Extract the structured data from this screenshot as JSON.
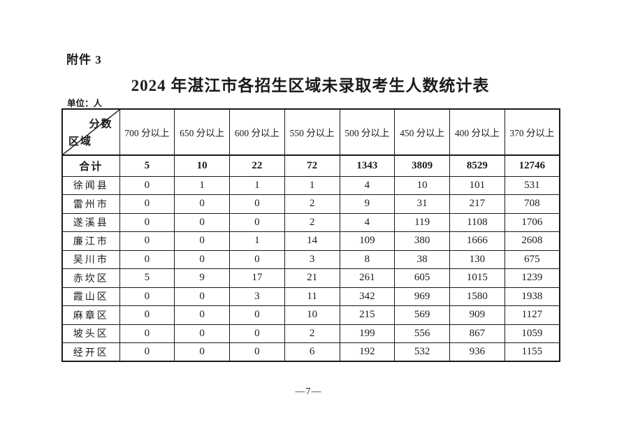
{
  "page": {
    "attachment_label": "附件 3",
    "title": "2024 年湛江市各招生区域未录取考生人数统计表",
    "unit_label": "单位：人",
    "page_number": "—7—"
  },
  "table": {
    "corner": {
      "score_label": "分数",
      "region_label": "区域"
    },
    "columns": [
      "700 分以上",
      "650 分以上",
      "600 分以上",
      "550 分以上",
      "500 分以上",
      "450 分以上",
      "400 分以上",
      "370 分以上"
    ],
    "total_row": {
      "label": "合计",
      "values": [
        "5",
        "10",
        "22",
        "72",
        "1343",
        "3809",
        "8529",
        "12746"
      ]
    },
    "rows": [
      {
        "label": "徐闻县",
        "values": [
          "0",
          "1",
          "1",
          "1",
          "4",
          "10",
          "101",
          "531"
        ]
      },
      {
        "label": "雷州市",
        "values": [
          "0",
          "0",
          "0",
          "2",
          "9",
          "31",
          "217",
          "708"
        ]
      },
      {
        "label": "遂溪县",
        "values": [
          "0",
          "0",
          "0",
          "2",
          "4",
          "119",
          "1108",
          "1706"
        ]
      },
      {
        "label": "廉江市",
        "values": [
          "0",
          "0",
          "1",
          "14",
          "109",
          "380",
          "1666",
          "2608"
        ]
      },
      {
        "label": "吴川市",
        "values": [
          "0",
          "0",
          "0",
          "3",
          "8",
          "38",
          "130",
          "675"
        ]
      },
      {
        "label": "赤坎区",
        "values": [
          "5",
          "9",
          "17",
          "21",
          "261",
          "605",
          "1015",
          "1239"
        ]
      },
      {
        "label": "霞山区",
        "values": [
          "0",
          "0",
          "3",
          "11",
          "342",
          "969",
          "1580",
          "1938"
        ]
      },
      {
        "label": "麻章区",
        "values": [
          "0",
          "0",
          "0",
          "10",
          "215",
          "569",
          "909",
          "1127"
        ]
      },
      {
        "label": "坡头区",
        "values": [
          "0",
          "0",
          "0",
          "2",
          "199",
          "556",
          "867",
          "1059"
        ]
      },
      {
        "label": "经开区",
        "values": [
          "0",
          "0",
          "0",
          "6",
          "192",
          "532",
          "936",
          "1155"
        ]
      }
    ]
  },
  "colors": {
    "ink": "#1a1a1a",
    "paper": "#ffffff"
  }
}
